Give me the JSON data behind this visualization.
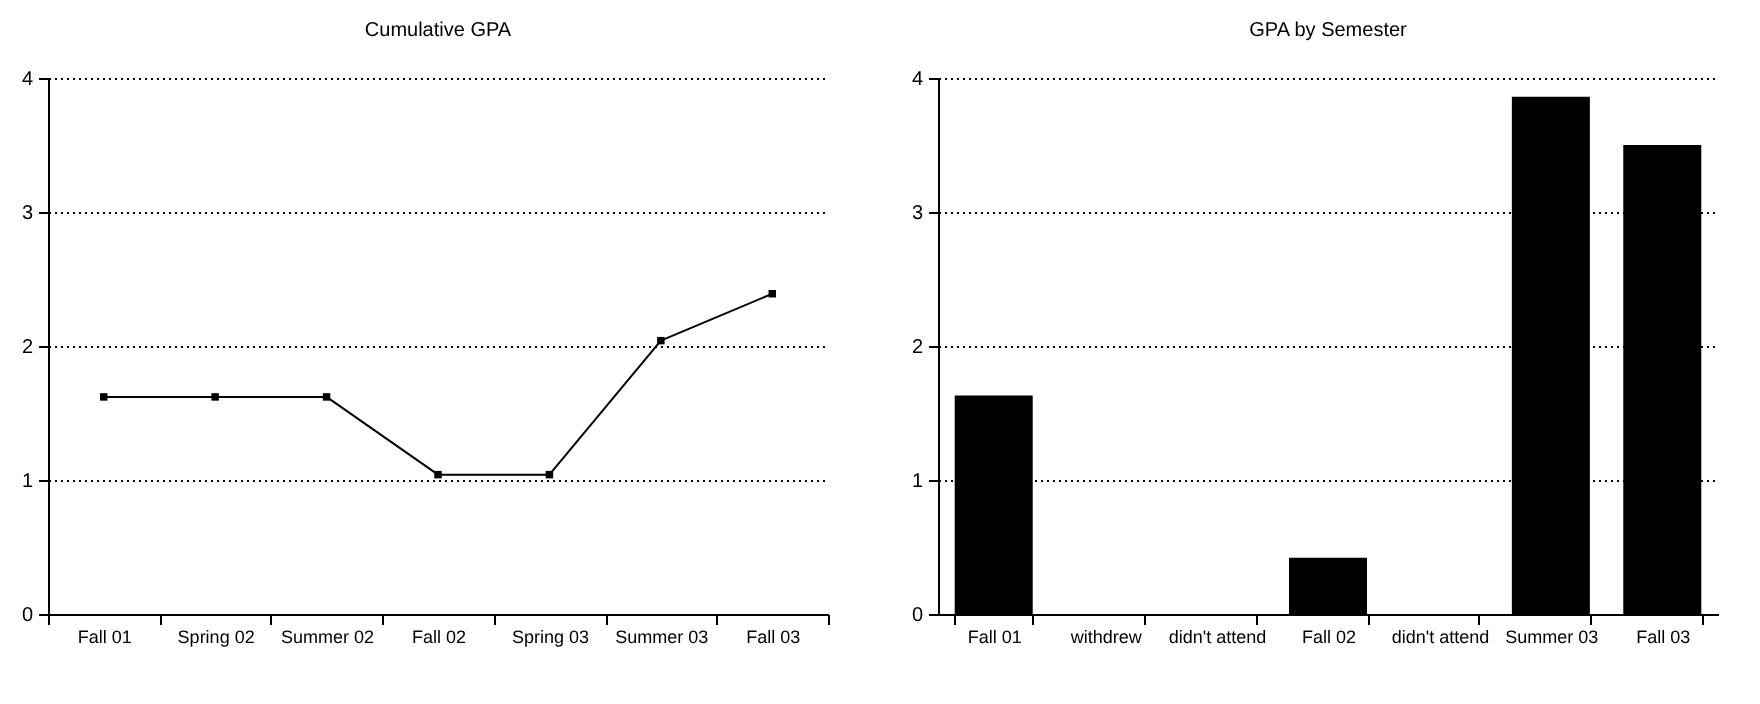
{
  "chart_data": [
    {
      "type": "line",
      "title": "Cumulative GPA",
      "categories": [
        "Fall 01",
        "Spring 02",
        "Summer 02",
        "Fall 02",
        "Spring 03",
        "Summer 03",
        "Fall 03"
      ],
      "series": [
        {
          "color": "#000000",
          "values": [
            1.62,
            1.62,
            1.62,
            1.04,
            1.04,
            2.04,
            2.39
          ]
        }
      ],
      "ylim": [
        0,
        4
      ],
      "yticks": [
        0,
        1,
        2,
        3,
        4
      ],
      "grid": "y",
      "marker": "square",
      "line_style": "solid",
      "legend": false
    },
    {
      "type": "bar",
      "title": "GPA by Semester",
      "categories": [
        "Fall 01",
        "withdrew",
        "didn't attend",
        "Fall 02",
        "didn't attend",
        "Summer 03",
        "Fall 03"
      ],
      "series": [
        {
          "color": "#000000",
          "values": [
            1.63,
            null,
            null,
            0.42,
            null,
            3.86,
            3.5
          ]
        }
      ],
      "ylim": [
        0,
        4
      ],
      "yticks": [
        0,
        1,
        2,
        3,
        4
      ],
      "grid": "y",
      "legend": false
    }
  ]
}
